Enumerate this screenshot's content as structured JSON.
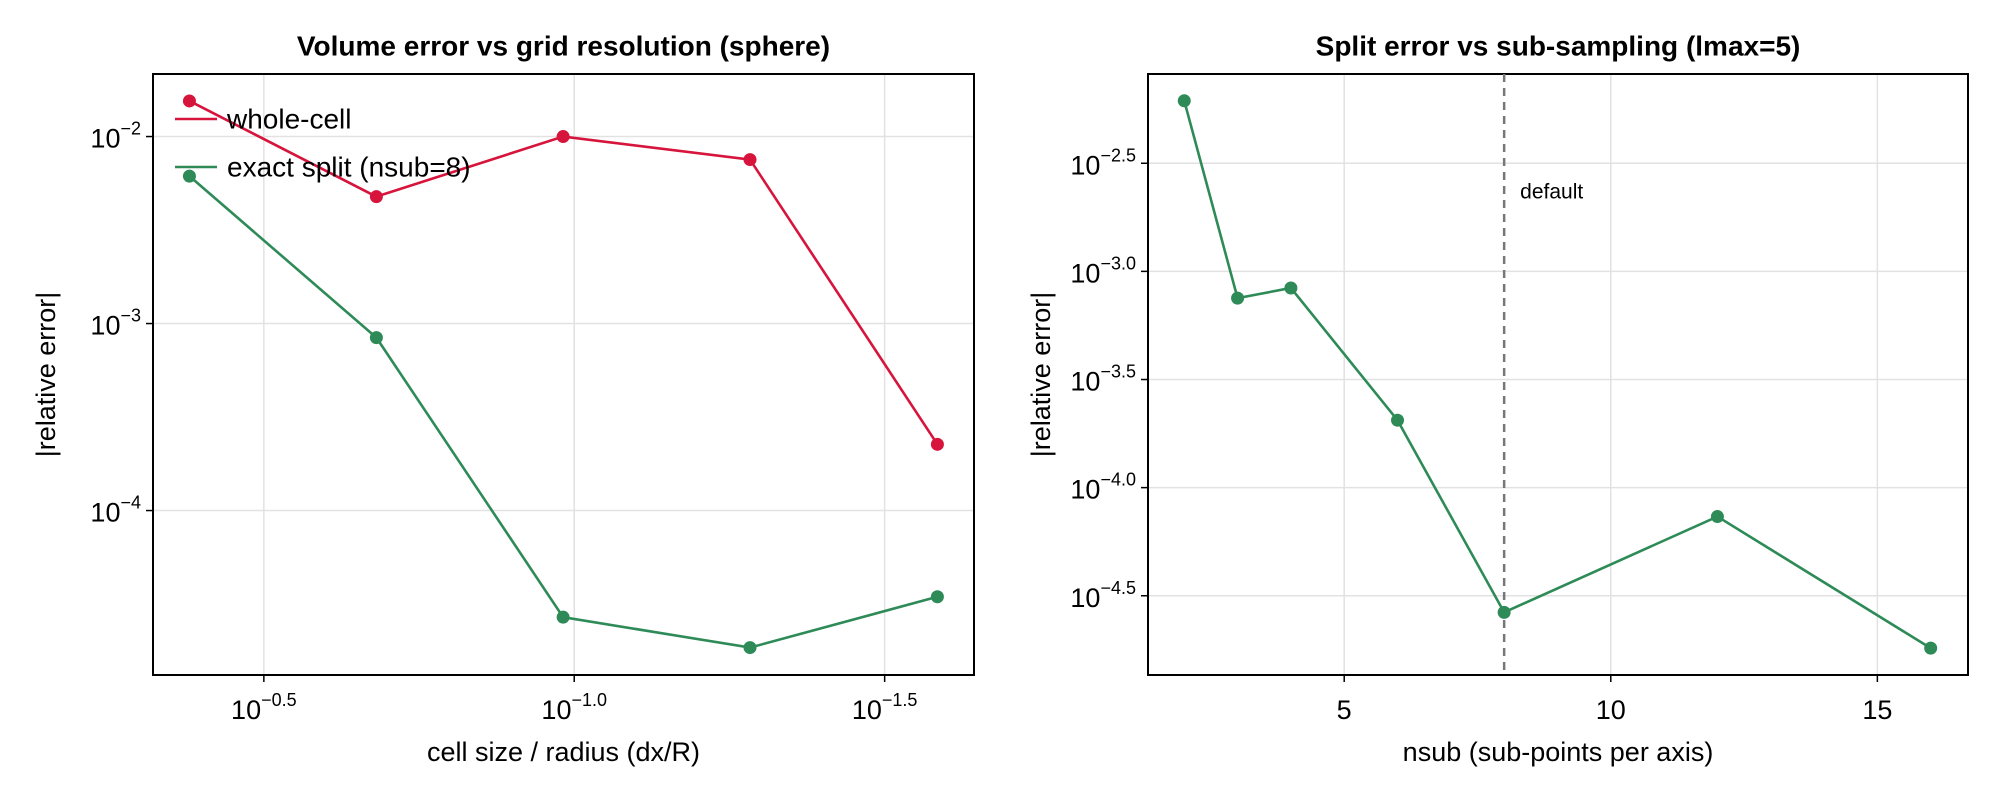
{
  "chart_data": [
    {
      "type": "line",
      "title": "Volume error vs grid resolution (sphere)",
      "xlabel": "cell size / radius  (dx/R)",
      "ylabel": "|relative error|",
      "x": [
        0.4167,
        0.2083,
        0.1042,
        0.0521,
        0.026
      ],
      "series": [
        {
          "name": "whole-cell",
          "color": "#d6143c",
          "values": [
            0.0155,
            0.00477,
            0.01,
            0.00753,
            0.000226
          ]
        },
        {
          "name": "exact split (nsub=8)",
          "color": "#2e8b57",
          "values": [
            0.00614,
            0.000841,
            2.69e-05,
            1.85e-05,
            3.46e-05
          ]
        }
      ],
      "xscale": "log",
      "yscale": "log",
      "xlim": [
        0.477,
        0.0227
      ],
      "ylim": [
        1.32e-05,
        0.0216
      ],
      "xticks": [
        {
          "value": 0.3162,
          "label": "10",
          "exponent": "−0.5"
        },
        {
          "value": 0.1,
          "label": "10",
          "exponent": "−1.0"
        },
        {
          "value": 0.03162,
          "label": "10",
          "exponent": "−1.5"
        }
      ],
      "yticks": [
        {
          "value": 0.01,
          "label": "10",
          "exponent": "−2"
        },
        {
          "value": 0.001,
          "label": "10",
          "exponent": "−3"
        },
        {
          "value": 0.0001,
          "label": "10",
          "exponent": "−4"
        }
      ],
      "grid": true,
      "legend": "upper left"
    },
    {
      "type": "line",
      "title": "Split error vs sub-sampling (lmax=5)",
      "xlabel": "nsub (sub-points per axis)",
      "ylabel": "|relative error|",
      "x": [
        2,
        3,
        4,
        6,
        8,
        12,
        16
      ],
      "series": [
        {
          "color": "#2e8b57",
          "values": [
            0.00615,
            0.000752,
            0.000838,
            0.000205,
            2.65e-05,
            7.35e-05,
            1.81e-05
          ]
        }
      ],
      "xscale": "linear",
      "yscale": "log",
      "xlim": [
        1.32,
        16.7
      ],
      "ylim": [
        1.36e-05,
        0.00818
      ],
      "xticks": [
        5,
        10,
        15
      ],
      "yticks": [
        {
          "value": 0.003162,
          "label": "10",
          "exponent": "−2.5"
        },
        {
          "value": 0.001,
          "label": "10",
          "exponent": "−3.0"
        },
        {
          "value": 0.0003162,
          "label": "10",
          "exponent": "−3.5"
        },
        {
          "value": 0.0001,
          "label": "10",
          "exponent": "−4.0"
        },
        {
          "value": 3.162e-05,
          "label": "10",
          "exponent": "−4.5"
        }
      ],
      "grid": true,
      "vlines": [
        {
          "x": 8,
          "label": "default",
          "color": "#777777"
        }
      ]
    }
  ]
}
